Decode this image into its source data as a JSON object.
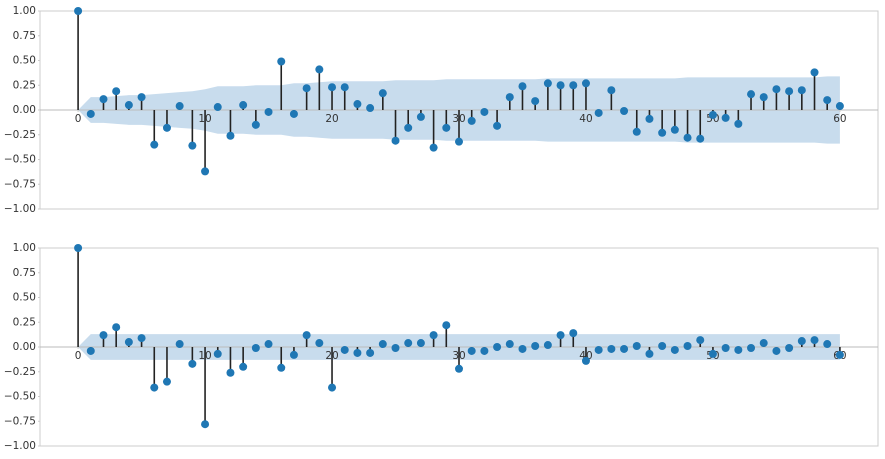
{
  "chart_data": [
    {
      "type": "stem",
      "x": [
        0,
        1,
        2,
        3,
        4,
        5,
        6,
        7,
        8,
        9,
        10,
        11,
        12,
        13,
        14,
        15,
        16,
        17,
        18,
        19,
        20,
        21,
        22,
        23,
        24,
        25,
        26,
        27,
        28,
        29,
        30,
        31,
        32,
        33,
        34,
        35,
        36,
        37,
        38,
        39,
        40,
        41,
        42,
        43,
        44,
        45,
        46,
        47,
        48,
        49,
        50,
        51,
        52,
        53,
        54,
        55,
        56,
        57,
        58,
        59,
        60
      ],
      "values": [
        1.0,
        -0.04,
        0.11,
        0.19,
        0.05,
        0.13,
        -0.35,
        -0.18,
        0.04,
        -0.36,
        -0.62,
        0.03,
        -0.26,
        0.05,
        -0.15,
        -0.02,
        0.49,
        -0.04,
        0.22,
        0.41,
        0.23,
        0.23,
        0.06,
        0.02,
        0.17,
        -0.31,
        -0.18,
        -0.07,
        -0.38,
        -0.18,
        -0.32,
        -0.11,
        -0.02,
        -0.16,
        0.13,
        0.24,
        0.09,
        0.27,
        0.25,
        0.25,
        0.27,
        -0.03,
        0.2,
        -0.01,
        -0.22,
        -0.09,
        -0.23,
        -0.2,
        -0.28,
        -0.29,
        -0.05,
        -0.08,
        -0.14,
        0.16,
        0.13,
        0.21,
        0.19,
        0.2,
        0.38,
        0.1,
        0.04
      ],
      "band": [
        0,
        0.13,
        0.13,
        0.14,
        0.15,
        0.15,
        0.16,
        0.17,
        0.18,
        0.19,
        0.21,
        0.24,
        0.24,
        0.24,
        0.25,
        0.25,
        0.25,
        0.27,
        0.27,
        0.28,
        0.29,
        0.29,
        0.29,
        0.29,
        0.29,
        0.3,
        0.3,
        0.3,
        0.3,
        0.31,
        0.31,
        0.31,
        0.31,
        0.31,
        0.31,
        0.31,
        0.31,
        0.32,
        0.32,
        0.32,
        0.32,
        0.32,
        0.32,
        0.32,
        0.32,
        0.32,
        0.32,
        0.32,
        0.33,
        0.33,
        0.33,
        0.33,
        0.33,
        0.33,
        0.33,
        0.33,
        0.33,
        0.33,
        0.33,
        0.34,
        0.34
      ],
      "color": "#1f77b4",
      "band_color": "#c8dced",
      "xlim": [
        -3,
        63
      ],
      "xticks": [
        0,
        10,
        20,
        30,
        40,
        50,
        60
      ],
      "ylim": [
        -1,
        1
      ],
      "yticks": [
        {
          "value": -1,
          "label": "−1.00"
        },
        {
          "value": -0.75,
          "label": "−0.75"
        },
        {
          "value": -0.5,
          "label": "−0.50"
        },
        {
          "value": -0.25,
          "label": "−0.25"
        },
        {
          "value": 0,
          "label": "0.00"
        },
        {
          "value": 0.25,
          "label": "0.25"
        },
        {
          "value": 0.5,
          "label": "0.50"
        },
        {
          "value": 0.75,
          "label": "0.75"
        },
        {
          "value": 1,
          "label": "1.00"
        }
      ]
    },
    {
      "type": "stem",
      "x": [
        0,
        1,
        2,
        3,
        4,
        5,
        6,
        7,
        8,
        9,
        10,
        11,
        12,
        13,
        14,
        15,
        16,
        17,
        18,
        19,
        20,
        21,
        22,
        23,
        24,
        25,
        26,
        27,
        28,
        29,
        30,
        31,
        32,
        33,
        34,
        35,
        36,
        37,
        38,
        39,
        40,
        41,
        42,
        43,
        44,
        45,
        46,
        47,
        48,
        49,
        50,
        51,
        52,
        53,
        54,
        55,
        56,
        57,
        58,
        59,
        60
      ],
      "values": [
        1.0,
        -0.04,
        0.12,
        0.2,
        0.05,
        0.09,
        -0.41,
        -0.35,
        0.03,
        -0.17,
        -0.78,
        -0.07,
        -0.26,
        -0.2,
        -0.01,
        0.03,
        -0.21,
        -0.08,
        0.12,
        0.04,
        -0.41,
        -0.03,
        -0.06,
        -0.06,
        0.03,
        -0.01,
        0.04,
        0.04,
        0.12,
        0.22,
        -0.22,
        -0.04,
        -0.04,
        0.0,
        0.03,
        -0.02,
        0.01,
        0.02,
        0.12,
        0.14,
        -0.14,
        -0.03,
        -0.02,
        -0.02,
        0.01,
        -0.07,
        0.01,
        -0.03,
        0.01,
        0.07,
        -0.07,
        -0.01,
        -0.03,
        -0.01,
        0.04,
        -0.04,
        -0.01,
        0.06,
        0.07,
        0.03,
        -0.08
      ],
      "band": [
        0,
        0.13,
        0.13,
        0.13,
        0.13,
        0.13,
        0.13,
        0.13,
        0.13,
        0.13,
        0.13,
        0.13,
        0.13,
        0.13,
        0.13,
        0.13,
        0.13,
        0.13,
        0.13,
        0.13,
        0.13,
        0.13,
        0.13,
        0.13,
        0.13,
        0.13,
        0.13,
        0.13,
        0.13,
        0.13,
        0.13,
        0.13,
        0.13,
        0.13,
        0.13,
        0.13,
        0.13,
        0.13,
        0.13,
        0.13,
        0.13,
        0.13,
        0.13,
        0.13,
        0.13,
        0.13,
        0.13,
        0.13,
        0.13,
        0.13,
        0.13,
        0.13,
        0.13,
        0.13,
        0.13,
        0.13,
        0.13,
        0.13,
        0.13,
        0.13,
        0.13
      ],
      "color": "#1f77b4",
      "band_color": "#c8dced",
      "xlim": [
        -3,
        63
      ],
      "xticks": [
        0,
        10,
        20,
        30,
        40,
        50,
        60
      ],
      "ylim": [
        -1,
        1
      ],
      "yticks": [
        {
          "value": -1,
          "label": "−1.00"
        },
        {
          "value": -0.75,
          "label": "−0.75"
        },
        {
          "value": -0.5,
          "label": "−0.50"
        },
        {
          "value": -0.25,
          "label": "−0.25"
        },
        {
          "value": 0,
          "label": "0.00"
        },
        {
          "value": 0.25,
          "label": "0.25"
        },
        {
          "value": 0.5,
          "label": "0.50"
        },
        {
          "value": 0.75,
          "label": "0.75"
        },
        {
          "value": 1,
          "label": "1.00"
        }
      ]
    }
  ]
}
